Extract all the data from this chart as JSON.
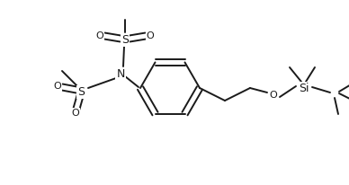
{
  "bg_color": "#ffffff",
  "line_color": "#1a1a1a",
  "line_width": 1.4,
  "font_size": 8,
  "figsize": [
    3.88,
    2.06
  ],
  "dpi": 100,
  "xlim": [
    0,
    388
  ],
  "ylim": [
    0,
    206
  ]
}
